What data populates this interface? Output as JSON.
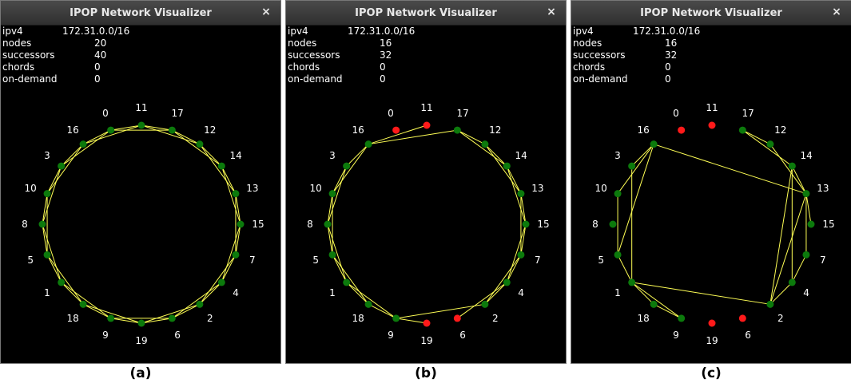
{
  "colors": {
    "active": "#0c7a0c",
    "failed": "#ff1a1a",
    "edge": "#ffff55",
    "label": "#ffffff"
  },
  "ring_order": [
    "11",
    "17",
    "12",
    "14",
    "13",
    "15",
    "7",
    "4",
    "2",
    "6",
    "19",
    "9",
    "18",
    "1",
    "5",
    "8",
    "10",
    "3",
    "16",
    "0"
  ],
  "panels": [
    {
      "caption": "(a)",
      "title": "IPOP Network Visualizer",
      "close_icon": "×",
      "stats": [
        {
          "label": "ipv4",
          "value": "172.31.0.0/16"
        },
        {
          "label": "nodes",
          "value": "20"
        },
        {
          "label": "successors",
          "value": "40"
        },
        {
          "label": "chords",
          "value": "0"
        },
        {
          "label": "on-demand",
          "value": "0"
        }
      ],
      "failed_nodes": [],
      "successor_links": true,
      "extra_links": []
    },
    {
      "caption": "(b)",
      "title": "IPOP Network Visualizer",
      "close_icon": "×",
      "stats": [
        {
          "label": "ipv4",
          "value": "172.31.0.0/16"
        },
        {
          "label": "nodes",
          "value": "16"
        },
        {
          "label": "successors",
          "value": "32"
        },
        {
          "label": "chords",
          "value": "0"
        },
        {
          "label": "on-demand",
          "value": "0"
        }
      ],
      "failed_nodes": [
        "0",
        "11",
        "19",
        "6"
      ],
      "successor_links": true,
      "extra_links": [
        [
          "16",
          "11"
        ],
        [
          "9",
          "19"
        ],
        [
          "6",
          "4"
        ]
      ]
    },
    {
      "caption": "(c)",
      "title": "IPOP Network Visualizer",
      "close_icon": "×",
      "stats": [
        {
          "label": "ipv4",
          "value": "172.31.0.0/16"
        },
        {
          "label": "nodes",
          "value": "16"
        },
        {
          "label": "successors",
          "value": "32"
        },
        {
          "label": "chords",
          "value": "0"
        },
        {
          "label": "on-demand",
          "value": "0"
        }
      ],
      "failed_nodes": [
        "0",
        "11",
        "19",
        "6"
      ],
      "successor_links": false,
      "extra_links": [
        [
          "16",
          "3"
        ],
        [
          "16",
          "13"
        ],
        [
          "16",
          "10"
        ],
        [
          "16",
          "5"
        ],
        [
          "3",
          "1"
        ],
        [
          "10",
          "5"
        ],
        [
          "5",
          "1"
        ],
        [
          "1",
          "18"
        ],
        [
          "1",
          "9"
        ],
        [
          "1",
          "2"
        ],
        [
          "17",
          "12"
        ],
        [
          "17",
          "14"
        ],
        [
          "12",
          "13"
        ],
        [
          "14",
          "13"
        ],
        [
          "14",
          "4"
        ],
        [
          "13",
          "7"
        ],
        [
          "13",
          "15"
        ],
        [
          "13",
          "2"
        ],
        [
          "7",
          "4"
        ],
        [
          "4",
          "2"
        ],
        [
          "18",
          "9"
        ],
        [
          "2",
          "14"
        ]
      ]
    }
  ]
}
